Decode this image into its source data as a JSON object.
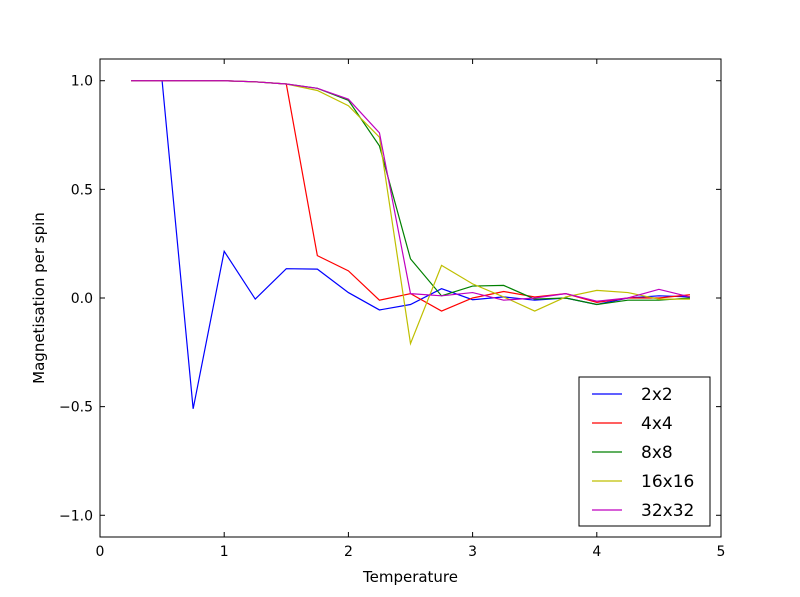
{
  "chart_data": {
    "type": "line",
    "xlabel": "Temperature",
    "ylabel": "Magnetisation per spin",
    "xlim": [
      0,
      5
    ],
    "ylim": [
      -1.1,
      1.1
    ],
    "xticks": [
      0,
      1,
      2,
      3,
      4,
      5
    ],
    "xtick_labels": [
      "0",
      "1",
      "2",
      "3",
      "4",
      "5"
    ],
    "yticks": [
      1.0,
      0.5,
      0.0,
      -0.5,
      -1.0
    ],
    "ytick_labels": [
      "1.0",
      "0.5",
      "0.0",
      "−0.5",
      "−1.0"
    ],
    "grid": false,
    "legend_position": "bottom-right",
    "x": [
      0.25,
      0.5,
      0.75,
      1.0,
      1.25,
      1.5,
      1.75,
      2.0,
      2.25,
      2.5,
      2.75,
      3.0,
      3.25,
      3.5,
      3.75,
      4.0,
      4.25,
      4.5,
      4.75
    ],
    "series": [
      {
        "name": "2x2",
        "color": "#0000ff",
        "values": [
          1.0,
          1.0,
          -0.51,
          0.215,
          -0.005,
          0.135,
          0.133,
          0.025,
          -0.055,
          -0.03,
          0.043,
          -0.008,
          0.005,
          -0.01,
          0.0,
          -0.03,
          0.0,
          0.01,
          0.005
        ]
      },
      {
        "name": "4x4",
        "color": "#ff0000",
        "values": [
          1.0,
          1.0,
          1.0,
          1.0,
          0.995,
          0.985,
          0.195,
          0.125,
          -0.01,
          0.02,
          -0.06,
          0.0,
          0.03,
          0.005,
          0.02,
          -0.02,
          0.0,
          0.0,
          0.015
        ]
      },
      {
        "name": "8x8",
        "color": "#008000",
        "values": [
          1.0,
          1.0,
          1.0,
          1.0,
          0.995,
          0.985,
          0.965,
          0.91,
          0.7,
          0.18,
          0.01,
          0.055,
          0.058,
          -0.005,
          0.0,
          -0.03,
          -0.01,
          -0.01,
          0.0
        ]
      },
      {
        "name": "16x16",
        "color": "#bfbf00",
        "values": [
          1.0,
          1.0,
          1.0,
          1.0,
          0.995,
          0.985,
          0.955,
          0.885,
          0.74,
          -0.21,
          0.15,
          0.065,
          0.005,
          -0.06,
          0.005,
          0.035,
          0.025,
          -0.005,
          -0.005
        ]
      },
      {
        "name": "32x32",
        "color": "#bf00bf",
        "values": [
          1.0,
          1.0,
          1.0,
          1.0,
          0.995,
          0.985,
          0.965,
          0.915,
          0.76,
          0.02,
          0.01,
          0.025,
          -0.01,
          0.0,
          0.02,
          -0.015,
          0.0,
          0.04,
          0.005
        ]
      }
    ]
  }
}
